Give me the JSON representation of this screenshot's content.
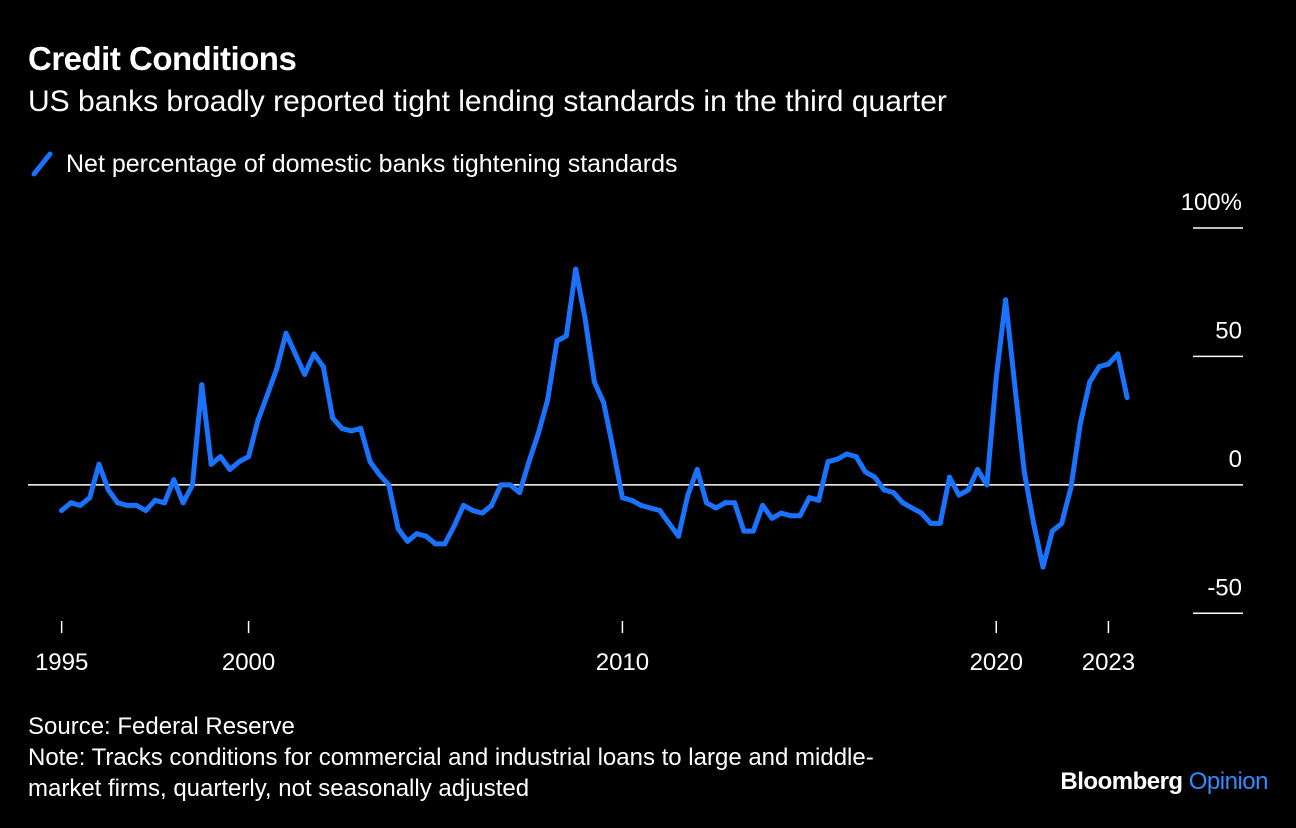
{
  "title": "Credit Conditions",
  "subtitle": "US banks broadly reported tight lending standards in the third quarter",
  "legend": {
    "label": "Net percentage of domestic banks tightening standards",
    "color": "#1a73ff"
  },
  "footer": {
    "source": "Source: Federal Reserve",
    "note_line1": "Note: Tracks conditions for commercial and industrial loans to large and middle-",
    "note_line2": "market firms, quarterly, not seasonally adjusted"
  },
  "brand": {
    "name": "Bloomberg",
    "section": "Opinion"
  },
  "chart_data": {
    "type": "line",
    "x_tick_labels": [
      "1995",
      "2000",
      "2010",
      "2020",
      "2023"
    ],
    "x_tick_values": [
      1995,
      2000,
      2010,
      2020,
      2023
    ],
    "y_tick_labels": [
      "100%",
      "50",
      "0",
      "-50"
    ],
    "y_tick_values": [
      100,
      50,
      0,
      -50
    ],
    "xlim": [
      1994.1,
      2026.6
    ],
    "ylim": [
      -53,
      100
    ],
    "zero_line": true,
    "legend_position": "top-left",
    "series": [
      {
        "name": "Net percentage of domestic banks tightening standards",
        "color": "#1a73ff",
        "points": [
          [
            1995.0,
            -10
          ],
          [
            1995.25,
            -7
          ],
          [
            1995.5,
            -8
          ],
          [
            1995.75,
            -5
          ],
          [
            1996.0,
            8
          ],
          [
            1996.25,
            -2
          ],
          [
            1996.5,
            -7
          ],
          [
            1996.75,
            -8
          ],
          [
            1997.0,
            -8
          ],
          [
            1997.25,
            -10
          ],
          [
            1997.5,
            -6
          ],
          [
            1997.75,
            -7
          ],
          [
            1998.0,
            2
          ],
          [
            1998.25,
            -7
          ],
          [
            1998.5,
            0
          ],
          [
            1998.75,
            39
          ],
          [
            1999.0,
            8
          ],
          [
            1999.25,
            11
          ],
          [
            1999.5,
            6
          ],
          [
            1999.75,
            9
          ],
          [
            2000.0,
            11
          ],
          [
            2000.25,
            25
          ],
          [
            2000.5,
            35
          ],
          [
            2000.75,
            45
          ],
          [
            2001.0,
            59
          ],
          [
            2001.25,
            51
          ],
          [
            2001.5,
            43
          ],
          [
            2001.75,
            51
          ],
          [
            2002.0,
            46
          ],
          [
            2002.25,
            26
          ],
          [
            2002.5,
            22
          ],
          [
            2002.75,
            21
          ],
          [
            2003.0,
            22
          ],
          [
            2003.25,
            9
          ],
          [
            2003.5,
            4
          ],
          [
            2003.75,
            0
          ],
          [
            2004.0,
            -17
          ],
          [
            2004.25,
            -22
          ],
          [
            2004.5,
            -19
          ],
          [
            2004.75,
            -20
          ],
          [
            2005.0,
            -23
          ],
          [
            2005.25,
            -23
          ],
          [
            2005.5,
            -16
          ],
          [
            2005.75,
            -8
          ],
          [
            2006.0,
            -10
          ],
          [
            2006.25,
            -11
          ],
          [
            2006.5,
            -8
          ],
          [
            2006.75,
            0
          ],
          [
            2007.0,
            0
          ],
          [
            2007.25,
            -3
          ],
          [
            2007.5,
            9
          ],
          [
            2007.75,
            20
          ],
          [
            2008.0,
            33
          ],
          [
            2008.25,
            56
          ],
          [
            2008.5,
            58
          ],
          [
            2008.75,
            84
          ],
          [
            2009.0,
            65
          ],
          [
            2009.25,
            40
          ],
          [
            2009.5,
            32
          ],
          [
            2009.75,
            14
          ],
          [
            2010.0,
            -5
          ],
          [
            2010.25,
            -6
          ],
          [
            2010.5,
            -8
          ],
          [
            2010.75,
            -9
          ],
          [
            2011.0,
            -10
          ],
          [
            2011.25,
            -15
          ],
          [
            2011.5,
            -20
          ],
          [
            2011.75,
            -4
          ],
          [
            2012.0,
            6
          ],
          [
            2012.25,
            -7
          ],
          [
            2012.5,
            -9
          ],
          [
            2012.75,
            -7
          ],
          [
            2013.0,
            -7
          ],
          [
            2013.25,
            -18
          ],
          [
            2013.5,
            -18
          ],
          [
            2013.75,
            -8
          ],
          [
            2014.0,
            -13
          ],
          [
            2014.25,
            -11
          ],
          [
            2014.5,
            -12
          ],
          [
            2014.75,
            -12
          ],
          [
            2015.0,
            -5
          ],
          [
            2015.25,
            -6
          ],
          [
            2015.5,
            9
          ],
          [
            2015.75,
            10
          ],
          [
            2016.0,
            12
          ],
          [
            2016.25,
            11
          ],
          [
            2016.5,
            5
          ],
          [
            2016.75,
            3
          ],
          [
            2017.0,
            -2
          ],
          [
            2017.25,
            -3
          ],
          [
            2017.5,
            -7
          ],
          [
            2017.75,
            -9
          ],
          [
            2018.0,
            -11
          ],
          [
            2018.25,
            -15
          ],
          [
            2018.5,
            -15
          ],
          [
            2018.75,
            3
          ],
          [
            2019.0,
            -4
          ],
          [
            2019.25,
            -2
          ],
          [
            2019.5,
            6
          ],
          [
            2019.75,
            0
          ],
          [
            2020.0,
            42
          ],
          [
            2020.25,
            72
          ],
          [
            2020.5,
            38
          ],
          [
            2020.75,
            5
          ],
          [
            2021.0,
            -15
          ],
          [
            2021.25,
            -32
          ],
          [
            2021.5,
            -18
          ],
          [
            2021.75,
            -15
          ],
          [
            2022.0,
            -1
          ],
          [
            2022.25,
            24
          ],
          [
            2022.5,
            40
          ],
          [
            2022.75,
            46
          ],
          [
            2023.0,
            47
          ],
          [
            2023.25,
            51
          ],
          [
            2023.5,
            34
          ]
        ]
      }
    ]
  }
}
